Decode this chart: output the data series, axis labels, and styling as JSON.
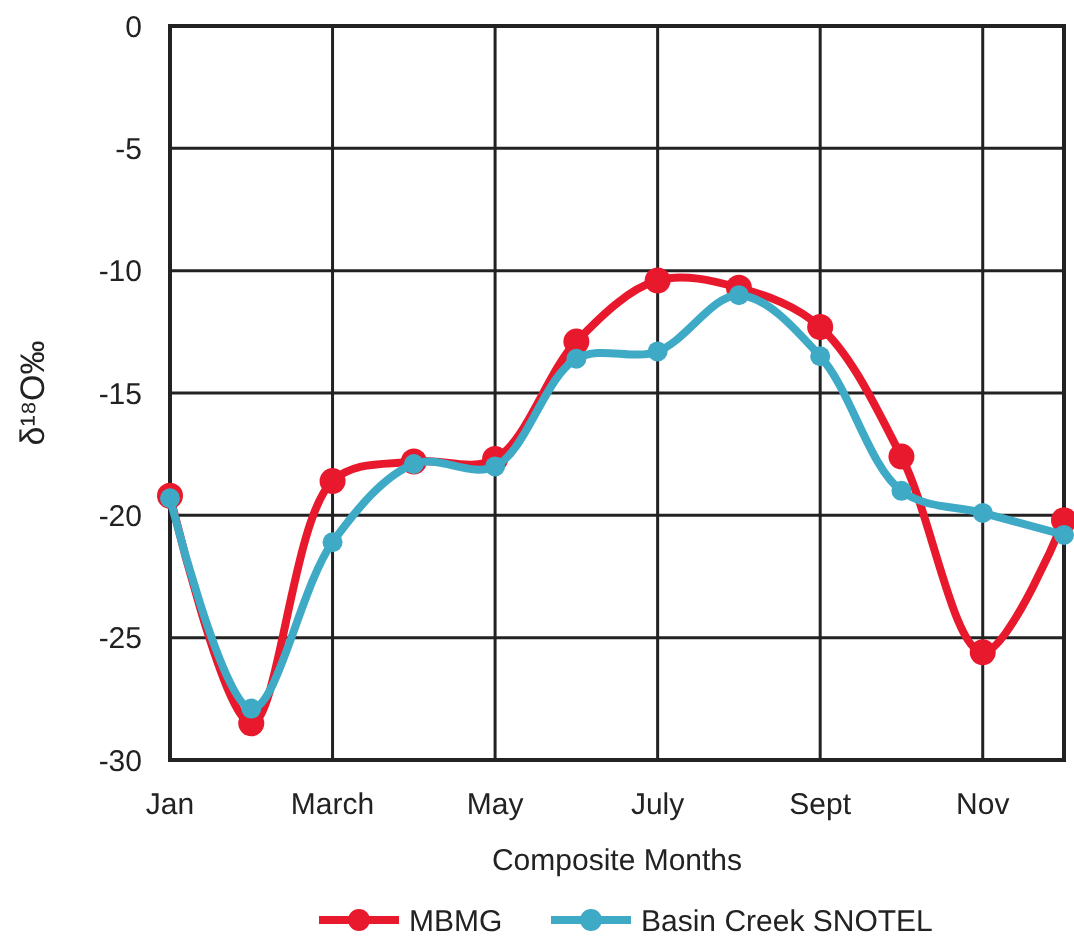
{
  "chart_data": {
    "type": "line",
    "xlabel": "Composite Months",
    "ylabel": "δ¹⁸O‰",
    "categories": [
      "Jan",
      null,
      "March",
      null,
      "May",
      null,
      "July",
      null,
      "Sept",
      null,
      "Nov",
      null
    ],
    "series": [
      {
        "name": "MBMG",
        "color": "#e8192c",
        "values": [
          -19.2,
          -28.5,
          -18.6,
          -17.8,
          -17.7,
          -12.9,
          -10.4,
          -10.7,
          -12.3,
          -17.6,
          -25.6,
          -20.2
        ]
      },
      {
        "name": "Basin Creek SNOTEL",
        "color": "#3eaac6",
        "values": [
          -19.3,
          -27.9,
          -21.1,
          -17.9,
          -18.0,
          -13.6,
          -13.3,
          -11.0,
          -13.5,
          -19.0,
          -19.9,
          -20.8
        ]
      }
    ],
    "ylim": [
      -30,
      0
    ],
    "yticks": [
      -30,
      -25,
      -20,
      -15,
      -10,
      -5,
      0
    ],
    "grid": true,
    "legend": "bottom",
    "marker": "circle",
    "line_style": "solid"
  }
}
